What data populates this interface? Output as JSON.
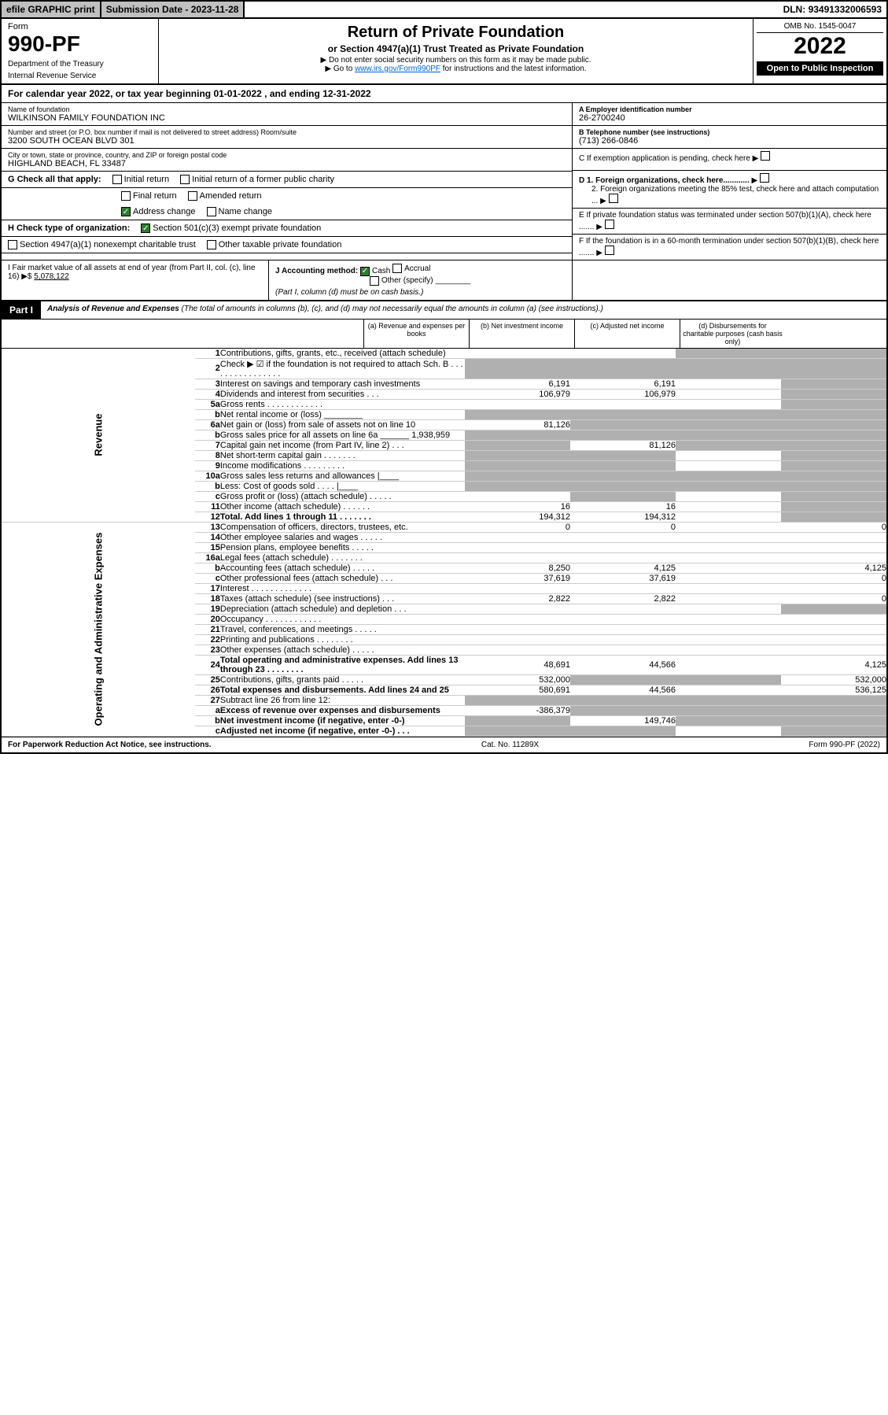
{
  "topbar": {
    "efile": "efile GRAPHIC print",
    "subdate_label": "Submission Date - ",
    "subdate": "2023-11-28",
    "dln_label": "DLN: ",
    "dln": "93491332006593"
  },
  "header": {
    "form_label": "Form",
    "form_num": "990-PF",
    "dept1": "Department of the Treasury",
    "dept2": "Internal Revenue Service",
    "title": "Return of Private Foundation",
    "subtitle": "or Section 4947(a)(1) Trust Treated as Private Foundation",
    "instr1": "▶ Do not enter social security numbers on this form as it may be made public.",
    "instr2": "▶ Go to www.irs.gov/Form990PF for instructions and the latest information.",
    "omb": "OMB No. 1545-0047",
    "year": "2022",
    "open": "Open to Public Inspection"
  },
  "calrow": {
    "prefix": "For calendar year 2022, or tax year beginning ",
    "begin": "01-01-2022",
    "mid": " , and ending ",
    "end": "12-31-2022"
  },
  "info": {
    "name_lbl": "Name of foundation",
    "name": "WILKINSON FAMILY FOUNDATION INC",
    "addr_lbl": "Number and street (or P.O. box number if mail is not delivered to street address)   Room/suite",
    "addr": "3200 SOUTH OCEAN BLVD 301",
    "city_lbl": "City or town, state or province, country, and ZIP or foreign postal code",
    "city": "HIGHLAND BEACH, FL  33487",
    "ein_lbl": "A Employer identification number",
    "ein": "26-2700240",
    "tel_lbl": "B Telephone number (see instructions)",
    "tel": "(713) 266-0846",
    "c_lbl": "C If exemption application is pending, check here",
    "d1": "D 1. Foreign organizations, check here............",
    "d2": "2. Foreign organizations meeting the 85% test, check here and attach computation ...",
    "e_lbl": "E  If private foundation status was terminated under section 507(b)(1)(A), check here .......",
    "f_lbl": "F  If the foundation is in a 60-month termination under section 507(b)(1)(B), check here .......",
    "g_lbl": "G Check all that apply:",
    "g_opts": [
      "Initial return",
      "Initial return of a former public charity",
      "Final return",
      "Amended return",
      "Address change",
      "Name change"
    ],
    "h_lbl": "H Check type of organization:",
    "h_opts": [
      "Section 501(c)(3) exempt private foundation",
      "Section 4947(a)(1) nonexempt charitable trust",
      "Other taxable private foundation"
    ],
    "i_lbl": "I Fair market value of all assets at end of year (from Part II, col. (c), line 16) ▶$ ",
    "i_val": "5,078,122",
    "j_lbl": "J Accounting method:",
    "j_opts": [
      "Cash",
      "Accrual",
      "Other (specify)"
    ],
    "j_note": "(Part I, column (d) must be on cash basis.)"
  },
  "part1": {
    "tab": "Part I",
    "title": "Analysis of Revenue and Expenses",
    "note": " (The total of amounts in columns (b), (c), and (d) may not necessarily equal the amounts in column (a) (see instructions).)",
    "cols": [
      "(a)  Revenue and expenses per books",
      "(b)  Net investment income",
      "(c)  Adjusted net income",
      "(d)  Disbursements for charitable purposes (cash basis only)"
    ]
  },
  "sides": {
    "rev": "Revenue",
    "exp": "Operating and Administrative Expenses"
  },
  "rows": [
    {
      "ln": "1",
      "desc": "Contributions, gifts, grants, etc., received (attach schedule)",
      "a": "",
      "b": "",
      "c": "shade",
      "d": "shade"
    },
    {
      "ln": "2",
      "desc": "Check ▶ ☑ if the foundation is not required to attach Sch. B  . . . . . . . . . . . . . . . .",
      "a": "shade",
      "b": "shade",
      "c": "shade",
      "d": "shade"
    },
    {
      "ln": "3",
      "desc": "Interest on savings and temporary cash investments",
      "a": "6,191",
      "b": "6,191",
      "c": "",
      "d": "shade"
    },
    {
      "ln": "4",
      "desc": "Dividends and interest from securities  . . .",
      "a": "106,979",
      "b": "106,979",
      "c": "",
      "d": "shade"
    },
    {
      "ln": "5a",
      "desc": "Gross rents  . . . . . . . . . . . .",
      "a": "",
      "b": "",
      "c": "",
      "d": "shade"
    },
    {
      "ln": "b",
      "desc": "Net rental income or (loss)  ________",
      "a": "shade",
      "b": "shade",
      "c": "shade",
      "d": "shade"
    },
    {
      "ln": "6a",
      "desc": "Net gain or (loss) from sale of assets not on line 10",
      "a": "81,126",
      "b": "shade",
      "c": "shade",
      "d": "shade"
    },
    {
      "ln": "b",
      "desc": "Gross sales price for all assets on line 6a ______ 1,938,959",
      "a": "shade",
      "b": "shade",
      "c": "shade",
      "d": "shade"
    },
    {
      "ln": "7",
      "desc": "Capital gain net income (from Part IV, line 2)  . . .",
      "a": "shade",
      "b": "81,126",
      "c": "shade",
      "d": "shade"
    },
    {
      "ln": "8",
      "desc": "Net short-term capital gain  . . . . . . .",
      "a": "shade",
      "b": "shade",
      "c": "",
      "d": "shade"
    },
    {
      "ln": "9",
      "desc": "Income modifications  . . . . . . . . .",
      "a": "shade",
      "b": "shade",
      "c": "",
      "d": "shade"
    },
    {
      "ln": "10a",
      "desc": "Gross sales less returns and allowances  |____",
      "a": "shade",
      "b": "shade",
      "c": "shade",
      "d": "shade"
    },
    {
      "ln": "b",
      "desc": "Less: Cost of goods sold  . . . . |____",
      "a": "shade",
      "b": "shade",
      "c": "shade",
      "d": "shade"
    },
    {
      "ln": "c",
      "desc": "Gross profit or (loss) (attach schedule)  . . . . .",
      "a": "",
      "b": "shade",
      "c": "",
      "d": "shade"
    },
    {
      "ln": "11",
      "desc": "Other income (attach schedule)  . . . . . .",
      "a": "16",
      "b": "16",
      "c": "",
      "d": "shade"
    },
    {
      "ln": "12",
      "desc": "Total. Add lines 1 through 11  . . . . . . .",
      "bold": true,
      "a": "194,312",
      "b": "194,312",
      "c": "",
      "d": "shade"
    },
    {
      "ln": "13",
      "desc": "Compensation of officers, directors, trustees, etc.",
      "a": "0",
      "b": "0",
      "c": "",
      "d": "0"
    },
    {
      "ln": "14",
      "desc": "Other employee salaries and wages  . . . . .",
      "a": "",
      "b": "",
      "c": "",
      "d": ""
    },
    {
      "ln": "15",
      "desc": "Pension plans, employee benefits  . . . . .",
      "a": "",
      "b": "",
      "c": "",
      "d": ""
    },
    {
      "ln": "16a",
      "desc": "Legal fees (attach schedule)  . . . . . . .",
      "a": "",
      "b": "",
      "c": "",
      "d": ""
    },
    {
      "ln": "b",
      "desc": "Accounting fees (attach schedule)  . . . . .",
      "a": "8,250",
      "b": "4,125",
      "c": "",
      "d": "4,125"
    },
    {
      "ln": "c",
      "desc": "Other professional fees (attach schedule)  . . .",
      "a": "37,619",
      "b": "37,619",
      "c": "",
      "d": "0"
    },
    {
      "ln": "17",
      "desc": "Interest  . . . . . . . . . . . . .",
      "a": "",
      "b": "",
      "c": "",
      "d": ""
    },
    {
      "ln": "18",
      "desc": "Taxes (attach schedule) (see instructions)  . . .",
      "a": "2,822",
      "b": "2,822",
      "c": "",
      "d": "0"
    },
    {
      "ln": "19",
      "desc": "Depreciation (attach schedule) and depletion  . . .",
      "a": "",
      "b": "",
      "c": "",
      "d": "shade"
    },
    {
      "ln": "20",
      "desc": "Occupancy  . . . . . . . . . . . .",
      "a": "",
      "b": "",
      "c": "",
      "d": ""
    },
    {
      "ln": "21",
      "desc": "Travel, conferences, and meetings  . . . . .",
      "a": "",
      "b": "",
      "c": "",
      "d": ""
    },
    {
      "ln": "22",
      "desc": "Printing and publications  . . . . . . . .",
      "a": "",
      "b": "",
      "c": "",
      "d": ""
    },
    {
      "ln": "23",
      "desc": "Other expenses (attach schedule)  . . . . .",
      "a": "",
      "b": "",
      "c": "",
      "d": ""
    },
    {
      "ln": "24",
      "desc": "Total operating and administrative expenses. Add lines 13 through 23  . . . . . . . .",
      "bold": true,
      "a": "48,691",
      "b": "44,566",
      "c": "",
      "d": "4,125"
    },
    {
      "ln": "25",
      "desc": "Contributions, gifts, grants paid  . . . . .",
      "a": "532,000",
      "b": "shade",
      "c": "shade",
      "d": "532,000"
    },
    {
      "ln": "26",
      "desc": "Total expenses and disbursements. Add lines 24 and 25",
      "bold": true,
      "a": "580,691",
      "b": "44,566",
      "c": "",
      "d": "536,125"
    },
    {
      "ln": "27",
      "desc": "Subtract line 26 from line 12:",
      "a": "shade",
      "b": "shade",
      "c": "shade",
      "d": "shade"
    },
    {
      "ln": "a",
      "desc": "Excess of revenue over expenses and disbursements",
      "bold": true,
      "a": "-386,379",
      "b": "shade",
      "c": "shade",
      "d": "shade"
    },
    {
      "ln": "b",
      "desc": "Net investment income (if negative, enter -0-)",
      "bold": true,
      "a": "shade",
      "b": "149,746",
      "c": "shade",
      "d": "shade"
    },
    {
      "ln": "c",
      "desc": "Adjusted net income (if negative, enter -0-)  . . .",
      "bold": true,
      "a": "shade",
      "b": "shade",
      "c": "",
      "d": "shade"
    }
  ],
  "footer": {
    "left": "For Paperwork Reduction Act Notice, see instructions.",
    "mid": "Cat. No. 11289X",
    "right": "Form 990-PF (2022)"
  }
}
